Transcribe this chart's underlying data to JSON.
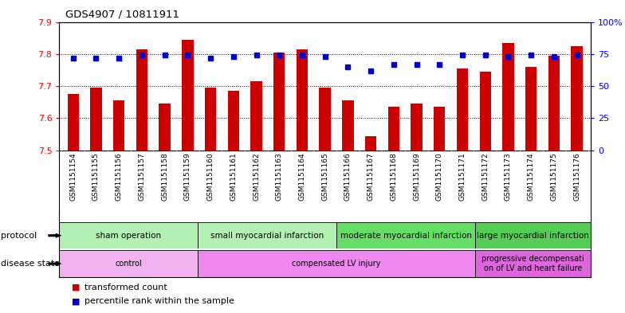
{
  "title": "GDS4907 / 10811911",
  "samples": [
    "GSM1151154",
    "GSM1151155",
    "GSM1151156",
    "GSM1151157",
    "GSM1151158",
    "GSM1151159",
    "GSM1151160",
    "GSM1151161",
    "GSM1151162",
    "GSM1151163",
    "GSM1151164",
    "GSM1151165",
    "GSM1151166",
    "GSM1151167",
    "GSM1151168",
    "GSM1151169",
    "GSM1151170",
    "GSM1151171",
    "GSM1151172",
    "GSM1151173",
    "GSM1151174",
    "GSM1151175",
    "GSM1151176"
  ],
  "transformed_counts": [
    7.675,
    7.695,
    7.655,
    7.815,
    7.645,
    7.845,
    7.695,
    7.685,
    7.715,
    7.805,
    7.815,
    7.695,
    7.655,
    7.545,
    7.635,
    7.645,
    7.635,
    7.755,
    7.745,
    7.835,
    7.76,
    7.795,
    7.825
  ],
  "percentile_ranks": [
    72,
    72,
    72,
    74,
    74,
    74,
    72,
    73,
    74,
    74,
    74,
    73,
    65,
    62,
    67,
    67,
    67,
    74,
    74,
    73,
    74,
    73,
    74
  ],
  "ylim_left": [
    7.5,
    7.9
  ],
  "ylim_right": [
    0,
    100
  ],
  "yticks_left": [
    7.5,
    7.6,
    7.7,
    7.8,
    7.9
  ],
  "ytick_right_labels": [
    "0",
    "25",
    "50",
    "75",
    "100%"
  ],
  "bar_color": "#cc0000",
  "dot_color": "#0000cc",
  "bar_bottom": 7.5,
  "protocol_groups": [
    {
      "label": "sham operation",
      "start": 0,
      "end": 6,
      "color": "#b3f0b3"
    },
    {
      "label": "small myocardial infarction",
      "start": 6,
      "end": 12,
      "color": "#b3f0b3"
    },
    {
      "label": "moderate myocardial infarction",
      "start": 12,
      "end": 18,
      "color": "#66dd66"
    },
    {
      "label": "large myocardial infarction",
      "start": 18,
      "end": 23,
      "color": "#55cc55"
    }
  ],
  "disease_groups": [
    {
      "label": "control",
      "start": 0,
      "end": 6,
      "color": "#f0b3f0"
    },
    {
      "label": "compensated LV injury",
      "start": 6,
      "end": 18,
      "color": "#ee88ee"
    },
    {
      "label": "progressive decompensati\non of LV and heart failure",
      "start": 18,
      "end": 23,
      "color": "#dd66dd"
    }
  ],
  "background_color": "#ffffff",
  "tick_bg_color": "#c8c8c8"
}
